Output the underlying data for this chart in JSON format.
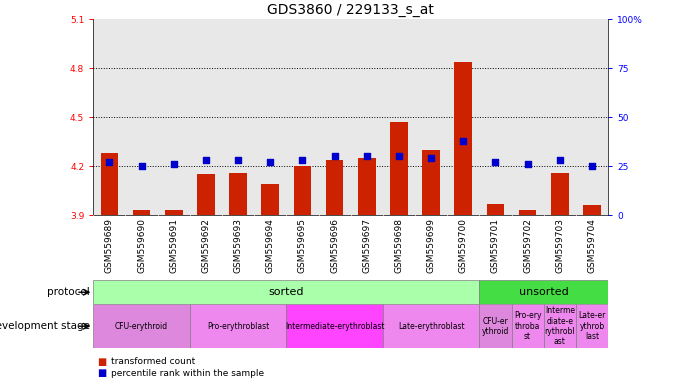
{
  "title": "GDS3860 / 229133_s_at",
  "samples": [
    "GSM559689",
    "GSM559690",
    "GSM559691",
    "GSM559692",
    "GSM559693",
    "GSM559694",
    "GSM559695",
    "GSM559696",
    "GSM559697",
    "GSM559698",
    "GSM559699",
    "GSM559700",
    "GSM559701",
    "GSM559702",
    "GSM559703",
    "GSM559704"
  ],
  "bar_values": [
    4.28,
    3.93,
    3.93,
    4.15,
    4.16,
    4.09,
    4.2,
    4.24,
    4.25,
    4.47,
    4.3,
    4.84,
    3.97,
    3.93,
    4.16,
    3.96
  ],
  "dot_values": [
    27,
    25,
    26,
    28,
    28,
    27,
    28,
    30,
    30,
    30,
    29,
    38,
    27,
    26,
    28,
    25
  ],
  "ymin": 3.9,
  "ymax": 5.1,
  "yticks": [
    3.9,
    4.2,
    4.5,
    4.8,
    5.1
  ],
  "y2min": 0,
  "y2max": 100,
  "y2ticks": [
    0,
    25,
    50,
    75,
    100
  ],
  "bar_color": "#cc2200",
  "dot_color": "#0000cc",
  "bar_bottom": 3.9,
  "protocol_sorted_label": "sorted",
  "protocol_unsorted_label": "unsorted",
  "protocol_sorted_color": "#aaffaa",
  "protocol_unsorted_color": "#44dd44",
  "dev_stages_sorted": [
    {
      "label": "CFU-erythroid",
      "start": 0,
      "end": 3,
      "color": "#dd88dd"
    },
    {
      "label": "Pro-erythroblast",
      "start": 3,
      "end": 6,
      "color": "#ee88ee"
    },
    {
      "label": "Intermediate-erythroblast",
      "start": 6,
      "end": 9,
      "color": "#ff44ff"
    },
    {
      "label": "Late-erythroblast",
      "start": 9,
      "end": 12,
      "color": "#ee88ee"
    }
  ],
  "dev_stages_unsorted": [
    {
      "label": "CFU-er\nythroid",
      "start": 12,
      "end": 13,
      "color": "#dd88dd"
    },
    {
      "label": "Pro-ery\nthroba\nst",
      "start": 13,
      "end": 14,
      "color": "#ee88ee"
    },
    {
      "label": "Interme\ndiate-e\nrythrobl\nast",
      "start": 14,
      "end": 15,
      "color": "#ee88ee"
    },
    {
      "label": "Late-er\nythrob\nlast",
      "start": 15,
      "end": 16,
      "color": "#ee88ee"
    }
  ],
  "title_fontsize": 10,
  "tick_fontsize": 6.5,
  "label_fontsize": 7.5
}
